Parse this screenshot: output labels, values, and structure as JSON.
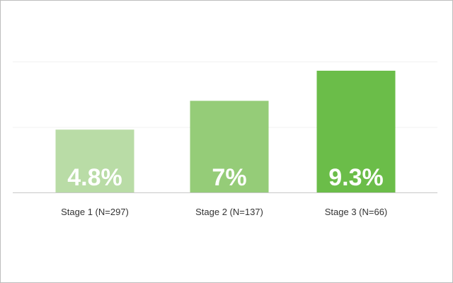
{
  "chart_data": {
    "type": "bar",
    "categories": [
      "Stage 1 (N=297)",
      "Stage 2 (N=137)",
      "Stage 3 (N=66)"
    ],
    "values": [
      4.8,
      7,
      9.3
    ],
    "value_labels": [
      "4.8%",
      "7%",
      "9.3%"
    ],
    "ylim": [
      0,
      10
    ],
    "grid": true,
    "legend": "none",
    "colors": [
      "#b9dca6",
      "#95cc78",
      "#6bbd49"
    ],
    "title": "",
    "xlabel": "",
    "ylabel": ""
  }
}
